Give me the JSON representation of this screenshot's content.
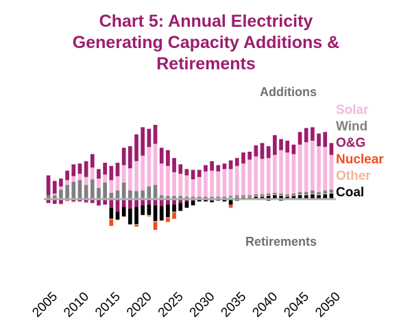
{
  "title_lines": [
    "Chart 5: Annual Electricity",
    "Generating Capacity Additions &",
    "Retirements"
  ],
  "colors": {
    "title": "#9c1d6d",
    "Solar": "#f7b6df",
    "Wind": "#808080",
    "O&G": "#9c1d6d",
    "Nuclear": "#f04e1e",
    "Other": "#f4b59a",
    "Coal": "#000000",
    "annotation": "#707070",
    "axis": "#b0b0b0"
  },
  "chart_data": {
    "type": "bar",
    "stacked": true,
    "title": "Chart 5: Annual Electricity Generating Capacity Additions & Retirements",
    "annotations": {
      "additions": "Additions",
      "retirements": "Retirements"
    },
    "legend_position": "right",
    "x_tick_labels": [
      "2005",
      "2010",
      "2015",
      "2020",
      "2025",
      "2030",
      "2035",
      "2040",
      "2045",
      "2050"
    ],
    "x_ticks": [
      2005,
      2010,
      2015,
      2020,
      2025,
      2030,
      2035,
      2040,
      2045,
      2050
    ],
    "categories": [
      2005,
      2006,
      2007,
      2008,
      2009,
      2010,
      2011,
      2012,
      2013,
      2014,
      2015,
      2016,
      2017,
      2018,
      2019,
      2020,
      2021,
      2022,
      2023,
      2024,
      2025,
      2026,
      2027,
      2028,
      2029,
      2030,
      2031,
      2032,
      2033,
      2034,
      2035,
      2036,
      2037,
      2038,
      2039,
      2040,
      2041,
      2042,
      2043,
      2044,
      2045,
      2046,
      2047,
      2048,
      2049,
      2050
    ],
    "ylim": [
      -70,
      115
    ],
    "additions": [
      {
        "name": "Coal",
        "values": [
          0,
          0,
          0,
          0,
          0,
          0,
          0,
          0,
          0,
          0,
          0,
          0,
          0,
          0,
          0,
          0,
          0,
          0,
          0,
          0,
          0,
          0,
          0,
          0,
          0,
          0,
          0,
          0,
          0,
          1,
          2,
          2,
          2,
          3,
          3,
          4,
          5,
          4,
          3,
          4,
          5,
          5,
          6,
          5,
          6,
          7
        ]
      },
      {
        "name": "Other",
        "values": [
          0,
          0,
          0,
          1,
          1,
          1,
          1,
          1,
          1,
          1,
          1,
          1,
          1,
          1,
          1,
          1,
          1,
          1,
          1,
          1,
          1,
          1,
          1,
          1,
          1,
          1,
          1,
          1,
          1,
          1,
          1,
          1,
          1,
          1,
          1,
          1,
          1,
          1,
          1,
          1,
          1,
          1,
          1,
          1,
          1,
          1
        ]
      },
      {
        "name": "Nuclear",
        "values": [
          0,
          0,
          0,
          0,
          0,
          0,
          0,
          0,
          0,
          0,
          0,
          0,
          0,
          0,
          0,
          0,
          0,
          0,
          0,
          0,
          0,
          0,
          0,
          0,
          0,
          0,
          0,
          0,
          0,
          0,
          0,
          0,
          0,
          0,
          0,
          0,
          0,
          0,
          0,
          0,
          0,
          0,
          0,
          0,
          0,
          0
        ]
      },
      {
        "name": "Wind",
        "values": [
          5,
          5,
          12,
          17,
          21,
          23,
          17,
          24,
          13,
          20,
          7,
          10,
          20,
          10,
          9,
          10,
          15,
          17,
          4,
          3,
          3,
          3,
          2,
          2,
          2,
          2,
          2,
          2,
          2,
          2,
          2,
          2,
          2,
          2,
          2,
          2,
          2,
          2,
          2,
          2,
          3,
          3,
          4,
          3,
          4,
          4
        ]
      },
      {
        "name": "Solar",
        "values": [
          0,
          2,
          4,
          6,
          7,
          8,
          10,
          15,
          12,
          10,
          16,
          18,
          22,
          28,
          38,
          44,
          50,
          52,
          40,
          38,
          30,
          28,
          27,
          22,
          25,
          32,
          33,
          32,
          35,
          34,
          37,
          40,
          45,
          48,
          45,
          45,
          48,
          55,
          53,
          50,
          60,
          63,
          63,
          58,
          55,
          44
        ]
      },
      {
        "name": "O&G",
        "values": [
          25,
          16,
          10,
          12,
          15,
          13,
          20,
          17,
          12,
          15,
          18,
          17,
          22,
          28,
          34,
          36,
          23,
          24,
          20,
          20,
          18,
          12,
          8,
          12,
          9,
          8,
          12,
          8,
          7,
          11,
          10,
          14,
          10,
          14,
          20,
          15,
          25,
          14,
          15,
          12,
          16,
          18,
          17,
          16,
          19,
          15
        ]
      }
    ],
    "retirements": [
      {
        "name": "O&G",
        "values": [
          -5,
          -6,
          -6,
          -2,
          -3,
          -3,
          -4,
          -5,
          -8,
          -7,
          -11,
          -16,
          -10,
          -12,
          -10,
          -8,
          -7,
          -8,
          -9,
          -7,
          -7,
          -5,
          -3,
          -2,
          -1,
          -1,
          -2,
          -1,
          -1,
          -1,
          0,
          0,
          0,
          0,
          0,
          0,
          0,
          0,
          0,
          0,
          0,
          0,
          0,
          0,
          0,
          0
        ]
      },
      {
        "name": "Coal",
        "values": [
          0,
          0,
          0,
          0,
          0,
          0,
          0,
          0,
          0,
          0,
          -14,
          -10,
          -12,
          -20,
          -22,
          -12,
          -13,
          -20,
          -18,
          -16,
          -9,
          -10,
          -8,
          -6,
          -2,
          -2,
          -2,
          -1,
          -2,
          -6,
          -2,
          -1,
          -1,
          -1,
          -1,
          -2,
          -1,
          -2,
          -1,
          -1,
          -1,
          -1,
          -1,
          -1,
          -1,
          0
        ]
      },
      {
        "name": "Other",
        "values": [
          0,
          0,
          -1,
          -1,
          -1,
          0,
          -1,
          0,
          -1,
          0,
          -1,
          -1,
          -1,
          0,
          -1,
          -1,
          -1,
          -1,
          -1,
          -1,
          -1,
          0,
          0,
          0,
          0,
          0,
          0,
          0,
          0,
          0,
          0,
          0,
          0,
          0,
          0,
          0,
          0,
          0,
          0,
          0,
          0,
          0,
          0,
          0,
          0,
          0
        ]
      },
      {
        "name": "Nuclear",
        "values": [
          0,
          0,
          0,
          0,
          0,
          0,
          0,
          0,
          0,
          0,
          -8,
          0,
          0,
          0,
          -2,
          0,
          -1,
          -10,
          0,
          -5,
          -8,
          0,
          0,
          0,
          0,
          0,
          0,
          0,
          0,
          -4,
          0,
          0,
          0,
          0,
          0,
          0,
          0,
          0,
          0,
          0,
          0,
          0,
          0,
          0,
          0,
          0
        ]
      },
      {
        "name": "Wind",
        "values": [
          0,
          0,
          0,
          0,
          0,
          0,
          0,
          0,
          0,
          0,
          0,
          0,
          0,
          0,
          0,
          0,
          0,
          0,
          0,
          0,
          0,
          0,
          0,
          0,
          0,
          0,
          0,
          0,
          0,
          0,
          0,
          0,
          0,
          0,
          0,
          0,
          0,
          0,
          0,
          0,
          0,
          0,
          0,
          0,
          0,
          0
        ]
      }
    ],
    "legend": [
      "Solar",
      "Wind",
      "O&G",
      "Nuclear",
      "Other",
      "Coal"
    ]
  }
}
